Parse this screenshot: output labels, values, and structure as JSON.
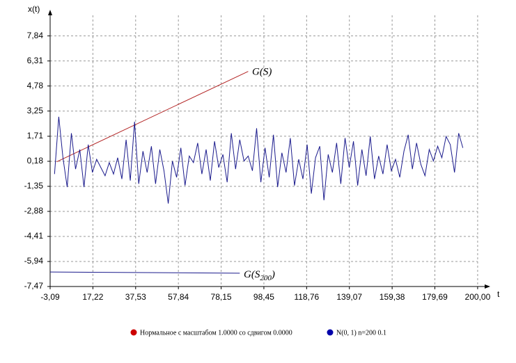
{
  "chart_data": {
    "type": "line",
    "x_label": "t",
    "y_label": "x(t)",
    "xlim": [
      -3.09,
      204
    ],
    "ylim": [
      -7.47,
      9.1
    ],
    "xticks": [
      {
        "value": -3.09,
        "label": "-3,09"
      },
      {
        "value": 17.22,
        "label": "17,22"
      },
      {
        "value": 37.53,
        "label": "37,53"
      },
      {
        "value": 57.84,
        "label": "57,84"
      },
      {
        "value": 78.15,
        "label": "78,15"
      },
      {
        "value": 98.45,
        "label": "98,45"
      },
      {
        "value": 118.76,
        "label": "118,76"
      },
      {
        "value": 139.07,
        "label": "139,07"
      },
      {
        "value": 159.38,
        "label": "159,38"
      },
      {
        "value": 179.69,
        "label": "179,69"
      },
      {
        "value": 200.0,
        "label": "200,00"
      }
    ],
    "yticks": [
      {
        "value": -7.47,
        "label": "-7,47"
      },
      {
        "value": -5.94,
        "label": "-5,94"
      },
      {
        "value": -4.41,
        "label": "-4,41"
      },
      {
        "value": -2.88,
        "label": "-2,88"
      },
      {
        "value": -1.35,
        "label": "-1,35"
      },
      {
        "value": 0.18,
        "label": "0,18"
      },
      {
        "value": 1.71,
        "label": "1,71"
      },
      {
        "value": 3.25,
        "label": "3,25"
      },
      {
        "value": 4.78,
        "label": "4,78"
      },
      {
        "value": 6.31,
        "label": "6,31"
      },
      {
        "value": 7.84,
        "label": "7,84"
      }
    ],
    "grid": true,
    "series": [
      {
        "name": "Нормальное с масштабом 1.0000 со сдвигом 0.0000",
        "color": "#cc0000",
        "line_color": "#b22222",
        "x": [
          0,
          91
        ],
        "values": [
          0.15,
          5.67
        ]
      },
      {
        "name": "N(0, 1) n=200 0.1",
        "color": "#0000aa",
        "line_color": "#1a1a8c",
        "x": [
          -1,
          1,
          3,
          5,
          7,
          9,
          11,
          13,
          15,
          17,
          19,
          21,
          23,
          25,
          27,
          29,
          31,
          33,
          35,
          37,
          39,
          41,
          43,
          45,
          47,
          49,
          51,
          53,
          55,
          57,
          59,
          61,
          63,
          65,
          67,
          69,
          71,
          73,
          75,
          77,
          79,
          81,
          83,
          85,
          87,
          89,
          91,
          93,
          95,
          97,
          99,
          101,
          103,
          105,
          107,
          109,
          111,
          113,
          115,
          117,
          119,
          121,
          123,
          125,
          127,
          129,
          131,
          133,
          135,
          137,
          139,
          141,
          143,
          145,
          147,
          149,
          151,
          153,
          155,
          157,
          159,
          161,
          163,
          165,
          167,
          169,
          171,
          173,
          175,
          177,
          179,
          181,
          183,
          185,
          187,
          189,
          191,
          193
        ],
        "values": [
          -0.6,
          2.9,
          0.4,
          -1.4,
          1.9,
          -0.3,
          0.9,
          -1.4,
          1.2,
          -0.5,
          0.3,
          -0.2,
          -0.7,
          0.1,
          -0.6,
          0.4,
          -0.9,
          1.5,
          -1.0,
          2.6,
          -1.2,
          0.8,
          -0.5,
          1.1,
          -1.2,
          0.9,
          -0.4,
          -2.4,
          0.2,
          -0.8,
          1.0,
          -1.3,
          0.5,
          0.1,
          1.3,
          -0.6,
          0.9,
          -1.0,
          1.4,
          -0.2,
          0.6,
          -1.1,
          1.9,
          -0.3,
          1.5,
          0.2,
          0.5,
          -0.4,
          2.2,
          -1.1,
          1.0,
          -0.8,
          1.8,
          -1.4,
          0.7,
          -0.5,
          1.6,
          -1.3,
          0.3,
          -0.9,
          1.2,
          -1.8,
          0.4,
          1.1,
          -2.2,
          0.6,
          -0.5,
          1.3,
          -1.2,
          1.6,
          -0.2,
          1.4,
          -1.3,
          0.9,
          -0.7,
          1.7,
          -0.9,
          0.5,
          -0.6,
          1.2,
          -0.4,
          0.3,
          -0.8,
          0.8,
          1.8,
          -0.3,
          1.3,
          0.0,
          -0.7,
          0.9,
          0.2,
          1.1,
          0.4,
          1.7,
          1.2,
          -0.5,
          1.9,
          1.0
        ]
      },
      {
        "line_color": "#1a1a8c",
        "x": [
          -3.09,
          87
        ],
        "values": [
          -6.58,
          -6.66
        ]
      }
    ],
    "annotations": [
      {
        "text": "G(S)"
      },
      {
        "text": "G(S",
        "sub": "200",
        "tail": ")"
      }
    ]
  }
}
